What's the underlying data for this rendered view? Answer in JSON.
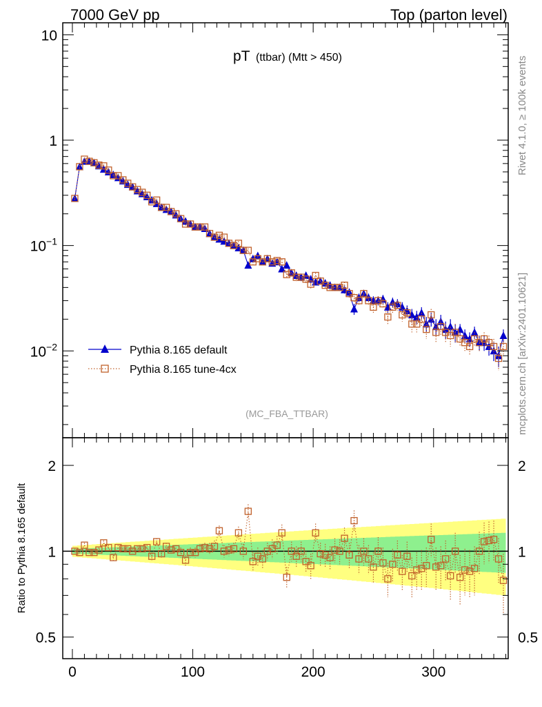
{
  "header": {
    "left": "7000 GeV pp",
    "right": "Top (parton level)"
  },
  "side": {
    "rivet": "Rivet 4.1.0, ≥ 100k events",
    "mcplots": "mcplots.cern.ch [arXiv:2401.10621]"
  },
  "chart_data": [
    {
      "panel": "main",
      "type": "scatter",
      "title_main": "pT",
      "title_sub": "(ttbar) (Mtt > 450)",
      "watermark": "(MC_FBA_TTBAR)",
      "yscale": "log",
      "xlim": [
        -8,
        362
      ],
      "ylim": [
        0.0015,
        13
      ],
      "yticks": [
        {
          "value": 10,
          "label": "10"
        },
        {
          "value": 1,
          "label": "1"
        },
        {
          "value": 0.1,
          "base": "10",
          "exp": "−1"
        },
        {
          "value": 0.01,
          "base": "10",
          "exp": "−2"
        }
      ],
      "legend_position": "middle-left",
      "series": [
        {
          "name": "Pythia 8.165 default",
          "color": "#0000cc",
          "marker": "triangle",
          "x": [
            2,
            6,
            10,
            14,
            18,
            22,
            26,
            30,
            34,
            38,
            42,
            46,
            50,
            54,
            58,
            62,
            66,
            70,
            74,
            78,
            82,
            86,
            90,
            94,
            98,
            102,
            106,
            110,
            114,
            118,
            122,
            126,
            130,
            134,
            138,
            142,
            146,
            150,
            154,
            158,
            162,
            166,
            170,
            174,
            178,
            182,
            186,
            190,
            194,
            198,
            202,
            206,
            210,
            214,
            218,
            222,
            226,
            230,
            234,
            238,
            242,
            246,
            250,
            254,
            258,
            262,
            266,
            270,
            274,
            278,
            282,
            286,
            290,
            294,
            298,
            302,
            306,
            310,
            314,
            318,
            322,
            326,
            330,
            334,
            338,
            342,
            346,
            350,
            354,
            358
          ],
          "y": [
            0.28,
            0.56,
            0.63,
            0.63,
            0.61,
            0.57,
            0.53,
            0.5,
            0.47,
            0.44,
            0.41,
            0.38,
            0.36,
            0.33,
            0.31,
            0.29,
            0.27,
            0.25,
            0.23,
            0.22,
            0.21,
            0.195,
            0.18,
            0.17,
            0.16,
            0.15,
            0.15,
            0.145,
            0.13,
            0.12,
            0.115,
            0.11,
            0.105,
            0.1,
            0.095,
            0.09,
            0.065,
            0.075,
            0.08,
            0.07,
            0.075,
            0.068,
            0.07,
            0.06,
            0.065,
            0.055,
            0.052,
            0.05,
            0.052,
            0.048,
            0.045,
            0.046,
            0.044,
            0.042,
            0.04,
            0.04,
            0.038,
            0.036,
            0.025,
            0.032,
            0.035,
            0.032,
            0.03,
            0.03,
            0.031,
            0.026,
            0.029,
            0.028,
            0.026,
            0.024,
            0.022,
            0.021,
            0.023,
            0.018,
            0.02,
            0.017,
            0.019,
            0.016,
            0.017,
            0.015,
            0.016,
            0.014,
            0.013,
            0.015,
            0.012,
            0.012,
            0.011,
            0.01,
            0.009,
            0.014
          ],
          "yerr": [
            0.012,
            0.02,
            0.02,
            0.02,
            0.02,
            0.02,
            0.018,
            0.017,
            0.016,
            0.015,
            0.014,
            0.013,
            0.012,
            0.011,
            0.011,
            0.01,
            0.01,
            0.009,
            0.009,
            0.008,
            0.008,
            0.008,
            0.007,
            0.007,
            0.007,
            0.006,
            0.006,
            0.006,
            0.006,
            0.006,
            0.005,
            0.005,
            0.005,
            0.005,
            0.005,
            0.005,
            0.004,
            0.004,
            0.004,
            0.004,
            0.004,
            0.004,
            0.004,
            0.004,
            0.004,
            0.004,
            0.004,
            0.004,
            0.004,
            0.004,
            0.003,
            0.003,
            0.003,
            0.003,
            0.003,
            0.003,
            0.003,
            0.003,
            0.003,
            0.003,
            0.003,
            0.003,
            0.003,
            0.003,
            0.003,
            0.003,
            0.003,
            0.003,
            0.003,
            0.003,
            0.003,
            0.003,
            0.003,
            0.003,
            0.003,
            0.003,
            0.003,
            0.003,
            0.003,
            0.003,
            0.002,
            0.002,
            0.002,
            0.002,
            0.002,
            0.002,
            0.002,
            0.002,
            0.002,
            0.002
          ]
        },
        {
          "name": "Pythia 8.165 tune-4cx",
          "color": "#c0602a",
          "marker": "open-square",
          "x": [
            2,
            6,
            10,
            14,
            18,
            22,
            26,
            30,
            34,
            38,
            42,
            46,
            50,
            54,
            58,
            62,
            66,
            70,
            74,
            78,
            82,
            86,
            90,
            94,
            98,
            102,
            106,
            110,
            114,
            118,
            122,
            126,
            130,
            134,
            138,
            142,
            146,
            150,
            154,
            158,
            162,
            166,
            170,
            174,
            178,
            182,
            186,
            190,
            194,
            198,
            202,
            206,
            210,
            214,
            218,
            222,
            226,
            230,
            234,
            238,
            242,
            246,
            250,
            254,
            258,
            262,
            266,
            270,
            274,
            278,
            282,
            286,
            290,
            294,
            298,
            302,
            306,
            310,
            314,
            318,
            322,
            326,
            330,
            334,
            338,
            342,
            346,
            350,
            354,
            358
          ],
          "y": [
            0.28,
            0.56,
            0.66,
            0.63,
            0.61,
            0.58,
            0.57,
            0.52,
            0.46,
            0.46,
            0.42,
            0.39,
            0.36,
            0.34,
            0.32,
            0.3,
            0.26,
            0.27,
            0.23,
            0.23,
            0.21,
            0.2,
            0.18,
            0.16,
            0.16,
            0.15,
            0.15,
            0.15,
            0.13,
            0.12,
            0.125,
            0.12,
            0.105,
            0.1,
            0.105,
            0.09,
            0.09,
            0.07,
            0.075,
            0.07,
            0.075,
            0.07,
            0.072,
            0.07,
            0.053,
            0.055,
            0.05,
            0.05,
            0.048,
            0.043,
            0.052,
            0.046,
            0.042,
            0.04,
            0.04,
            0.04,
            0.042,
            0.035,
            0.032,
            0.03,
            0.035,
            0.03,
            0.026,
            0.03,
            0.028,
            0.021,
            0.026,
            0.027,
            0.022,
            0.023,
            0.018,
            0.018,
            0.02,
            0.016,
            0.022,
            0.015,
            0.017,
            0.015,
            0.014,
            0.015,
            0.013,
            0.012,
            0.011,
            0.013,
            0.012,
            0.013,
            0.012,
            0.011,
            0.0085,
            0.011
          ],
          "yerr": [
            0.012,
            0.02,
            0.02,
            0.02,
            0.02,
            0.02,
            0.018,
            0.017,
            0.016,
            0.015,
            0.014,
            0.013,
            0.012,
            0.011,
            0.011,
            0.01,
            0.01,
            0.009,
            0.009,
            0.008,
            0.008,
            0.008,
            0.007,
            0.007,
            0.007,
            0.006,
            0.006,
            0.006,
            0.006,
            0.006,
            0.005,
            0.005,
            0.005,
            0.005,
            0.005,
            0.005,
            0.004,
            0.004,
            0.004,
            0.004,
            0.004,
            0.004,
            0.004,
            0.004,
            0.004,
            0.004,
            0.004,
            0.004,
            0.004,
            0.004,
            0.003,
            0.003,
            0.003,
            0.003,
            0.003,
            0.003,
            0.003,
            0.003,
            0.003,
            0.003,
            0.003,
            0.003,
            0.003,
            0.003,
            0.003,
            0.003,
            0.003,
            0.003,
            0.003,
            0.003,
            0.003,
            0.003,
            0.003,
            0.003,
            0.003,
            0.003,
            0.003,
            0.003,
            0.003,
            0.003,
            0.002,
            0.002,
            0.002,
            0.002,
            0.002,
            0.002,
            0.002,
            0.002,
            0.002,
            0.002
          ]
        }
      ]
    },
    {
      "panel": "ratio",
      "type": "scatter",
      "ylabel": "Ratio to Pythia 8.165 default",
      "yscale": "log",
      "ylim": [
        0.42,
        2.5
      ],
      "yticks": [
        {
          "value": 0.5,
          "label": "0.5"
        },
        {
          "value": 1,
          "label": "1"
        },
        {
          "value": 2,
          "label": "2"
        }
      ],
      "xlim": [
        -8,
        362
      ],
      "xticks": [
        {
          "value": 0,
          "label": "0"
        },
        {
          "value": 100,
          "label": "100"
        },
        {
          "value": 200,
          "label": "200"
        },
        {
          "value": 300,
          "label": "300"
        }
      ],
      "band_colors": {
        "inner": "#8ef08e",
        "outer": "#ffff80"
      },
      "band_inner_halfwidth": [
        0.02,
        0.16
      ],
      "band_outer_halfwidth": [
        0.045,
        0.3
      ],
      "reference_line": 1,
      "series": [
        {
          "name": "Pythia 8.165 tune-4cx / default",
          "color": "#c0602a",
          "marker": "open-square",
          "x": [
            2,
            6,
            10,
            14,
            18,
            22,
            26,
            30,
            34,
            38,
            42,
            46,
            50,
            54,
            58,
            62,
            66,
            70,
            74,
            78,
            82,
            86,
            90,
            94,
            98,
            102,
            106,
            110,
            114,
            118,
            122,
            126,
            130,
            134,
            138,
            142,
            146,
            150,
            154,
            158,
            162,
            166,
            170,
            174,
            178,
            182,
            186,
            190,
            194,
            198,
            202,
            206,
            210,
            214,
            218,
            222,
            226,
            230,
            234,
            238,
            242,
            246,
            250,
            254,
            258,
            262,
            266,
            270,
            274,
            278,
            282,
            286,
            290,
            294,
            298,
            302,
            306,
            310,
            314,
            318,
            322,
            326,
            330,
            334,
            338,
            342,
            346,
            350,
            354,
            358
          ],
          "y": [
            1.0,
            0.99,
            1.05,
            0.99,
            0.99,
            1.01,
            1.07,
            1.03,
            0.95,
            1.03,
            1.02,
            1.02,
            1.0,
            1.02,
            1.02,
            1.03,
            0.96,
            1.08,
            0.98,
            1.04,
            1.01,
            1.02,
            0.99,
            0.93,
            0.99,
            0.99,
            1.02,
            1.03,
            1.02,
            1.04,
            1.18,
            1.0,
            1.01,
            1.02,
            1.16,
            1.0,
            1.38,
            0.92,
            0.96,
            0.94,
            1.0,
            1.02,
            1.05,
            1.16,
            0.81,
            1.0,
            0.96,
            1.0,
            0.92,
            0.89,
            1.16,
            0.98,
            0.97,
            0.95,
            1.01,
            1.0,
            1.11,
            0.97,
            1.28,
            0.94,
            1.0,
            0.94,
            0.88,
            1.0,
            0.91,
            0.8,
            0.9,
            0.97,
            0.85,
            0.96,
            0.82,
            0.86,
            0.87,
            0.89,
            1.1,
            0.88,
            0.89,
            0.94,
            0.82,
            1.0,
            0.81,
            0.86,
            0.85,
            0.87,
            1.0,
            1.08,
            1.09,
            1.1,
            0.94,
            0.79
          ],
          "yerr": [
            0.02,
            0.02,
            0.02,
            0.02,
            0.02,
            0.02,
            0.02,
            0.02,
            0.02,
            0.02,
            0.02,
            0.02,
            0.02,
            0.02,
            0.02,
            0.02,
            0.03,
            0.03,
            0.03,
            0.03,
            0.03,
            0.03,
            0.04,
            0.04,
            0.04,
            0.04,
            0.04,
            0.04,
            0.05,
            0.05,
            0.05,
            0.05,
            0.05,
            0.05,
            0.06,
            0.06,
            0.08,
            0.07,
            0.07,
            0.07,
            0.07,
            0.08,
            0.08,
            0.08,
            0.07,
            0.08,
            0.08,
            0.08,
            0.08,
            0.09,
            0.09,
            0.09,
            0.09,
            0.09,
            0.1,
            0.1,
            0.1,
            0.1,
            0.11,
            0.11,
            0.11,
            0.11,
            0.11,
            0.12,
            0.12,
            0.11,
            0.12,
            0.12,
            0.12,
            0.12,
            0.13,
            0.13,
            0.14,
            0.14,
            0.15,
            0.15,
            0.15,
            0.15,
            0.15,
            0.16,
            0.16,
            0.16,
            0.16,
            0.17,
            0.17,
            0.18,
            0.18,
            0.18,
            0.17,
            0.19
          ]
        }
      ]
    }
  ]
}
